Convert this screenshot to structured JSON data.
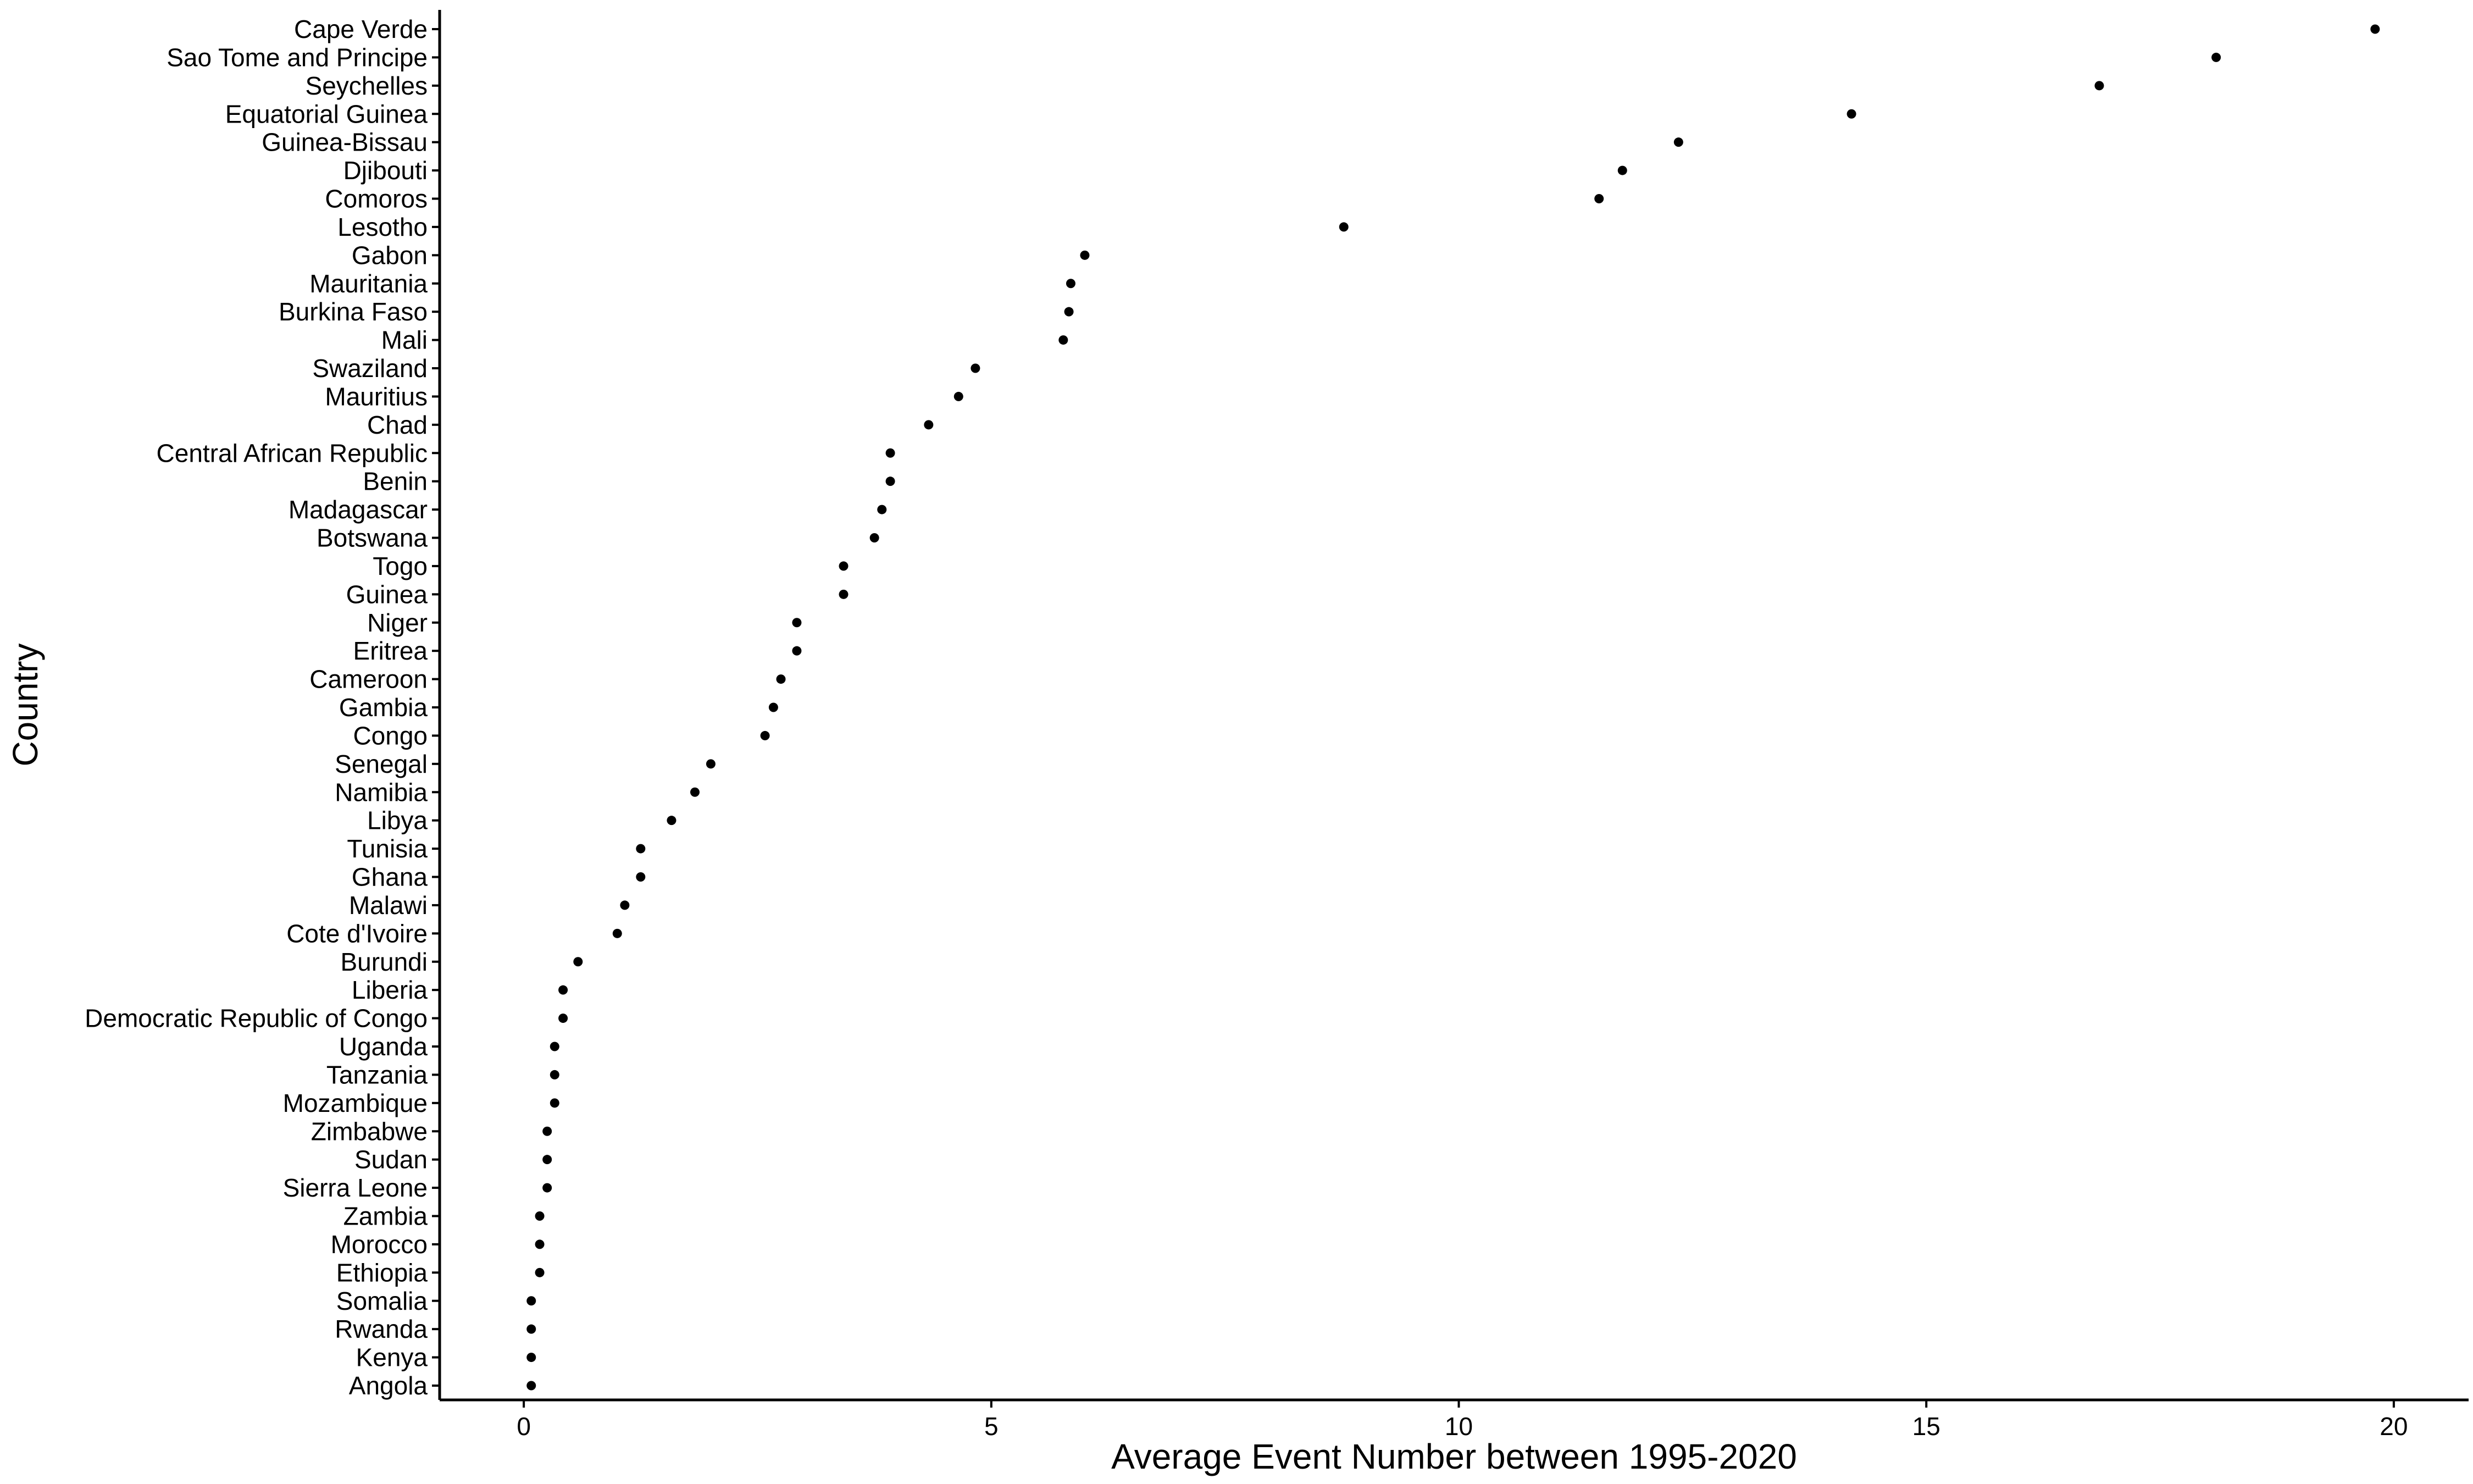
{
  "chart_data": {
    "type": "scatter",
    "xlabel": "Average Event Number between 1995-2020",
    "ylabel": "Country",
    "xlim": [
      -0.9,
      20.8
    ],
    "xticks": [
      0,
      5,
      10,
      15,
      20
    ],
    "grid": false,
    "point_color": "#000000",
    "categories": [
      "Cape Verde",
      "Sao Tome and Principe",
      "Seychelles",
      "Equatorial Guinea",
      "Guinea-Bissau",
      "Djibouti",
      "Comoros",
      "Lesotho",
      "Gabon",
      "Mauritania",
      "Burkina Faso",
      "Mali",
      "Swaziland",
      "Mauritius",
      "Chad",
      "Central African Republic",
      "Benin",
      "Madagascar",
      "Botswana",
      "Togo",
      "Guinea",
      "Niger",
      "Eritrea",
      "Cameroon",
      "Gambia",
      "Congo",
      "Senegal",
      "Namibia",
      "Libya",
      "Tunisia",
      "Ghana",
      "Malawi",
      "Cote d'Ivoire",
      "Burundi",
      "Liberia",
      "Democratic Republic of Congo",
      "Uganda",
      "Tanzania",
      "Mozambique",
      "Zimbabwe",
      "Sudan",
      "Sierra Leone",
      "Zambia",
      "Morocco",
      "Ethiopia",
      "Somalia",
      "Rwanda",
      "Kenya",
      "Angola"
    ],
    "values": [
      19.8,
      18.1,
      16.85,
      14.2,
      12.35,
      11.75,
      11.5,
      8.77,
      6.0,
      5.85,
      5.83,
      5.77,
      4.83,
      4.65,
      4.33,
      3.92,
      3.92,
      3.83,
      3.75,
      3.42,
      3.42,
      2.92,
      2.92,
      2.75,
      2.67,
      2.58,
      2.0,
      1.83,
      1.58,
      1.25,
      1.25,
      1.08,
      1.0,
      0.58,
      0.42,
      0.42,
      0.33,
      0.33,
      0.33,
      0.25,
      0.25,
      0.25,
      0.17,
      0.17,
      0.17,
      0.08,
      0.08,
      0.08,
      0.08
    ]
  }
}
